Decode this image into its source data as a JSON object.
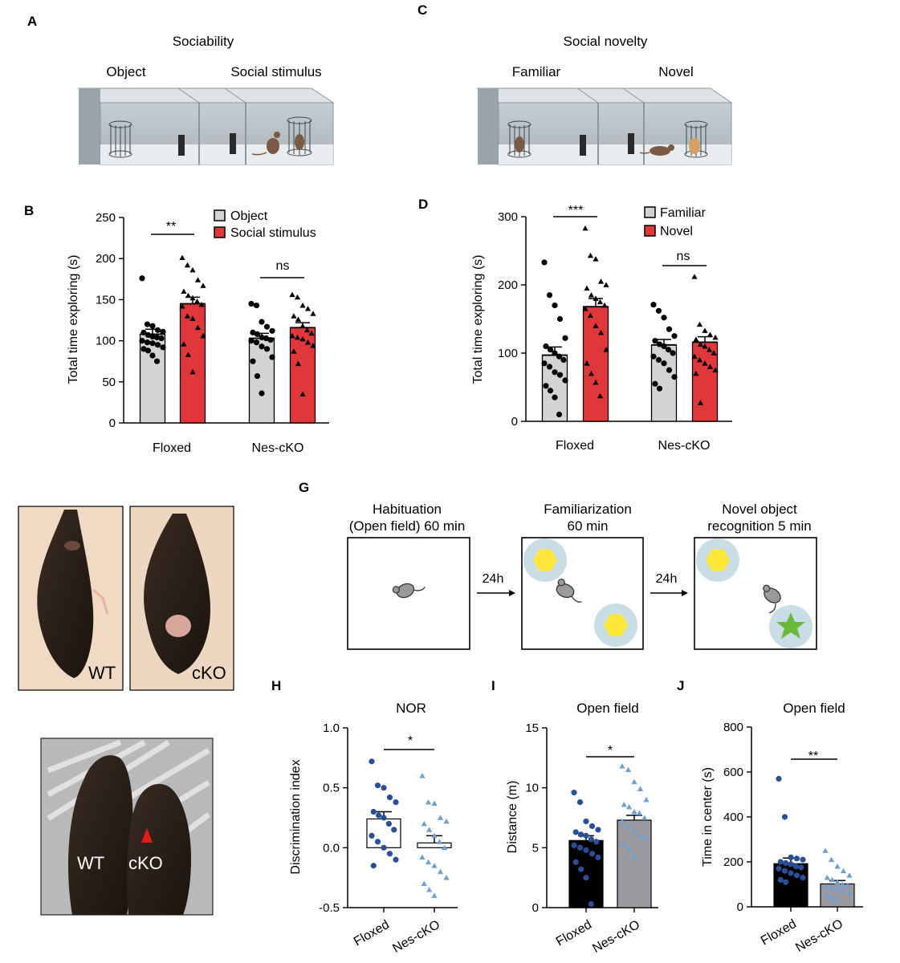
{
  "panels": {
    "A": {
      "letter": "A",
      "title": "Sociability",
      "left_label": "Object",
      "right_label": "Social stimulus"
    },
    "C": {
      "letter": "C",
      "title": "Social novelty",
      "left_label": "Familiar",
      "right_label": "Novel"
    },
    "G": {
      "letter": "G",
      "steps": [
        {
          "title_line1": "Habituation",
          "title_line2": "(Open field) 60 min"
        },
        {
          "title_line1": "Familiarization",
          "title_line2": "60 min"
        },
        {
          "title_line1": "Novel object",
          "title_line2": "recognition 5 min"
        }
      ],
      "arrow_labels": [
        "24h",
        "24h"
      ]
    },
    "photos": {
      "top_left_label": "WT",
      "top_right_label": "cKO",
      "bottom_label_wt": "WT",
      "bottom_label_cko": "cKO"
    }
  },
  "colors": {
    "gray_bar": "#d3d3d3",
    "red_bar": "#e0383a",
    "black_bar": "#000000",
    "nor_gray_bar": "#9a9aa0",
    "dark_blue_dots": "#2b4f95",
    "light_blue_dots": "#6e9fd1",
    "hexagon_yellow": "#ffe83b",
    "star_green": "#6bb83a",
    "halo_blue": "#c9dde6",
    "arrow_red": "#e41d1d"
  },
  "chart_data": [
    {
      "id": "B",
      "letter": "B",
      "type": "bar",
      "categories": [
        "Floxed",
        "Nes-cKO"
      ],
      "series": [
        {
          "name": "Object",
          "values": [
            108,
            103
          ],
          "sem": [
            6,
            6
          ],
          "points": [
            [
              176,
              120,
              118,
              113,
              111,
              110,
              107,
              105,
              104,
              103,
              100,
              98,
              97,
              95,
              92,
              90,
              88,
              82,
              75
            ],
            [
              145,
              143,
              123,
              117,
              112,
              110,
              108,
              104,
              103,
              101,
              100,
              98,
              93,
              90,
              80,
              75,
              57,
              36
            ]
          ]
        },
        {
          "name": "Social stimulus",
          "values": [
            145,
            116
          ],
          "sem": [
            8,
            6
          ],
          "points": [
            [
              201,
              192,
              186,
              174,
              167,
              160,
              155,
              152,
              148,
              144,
              142,
              130,
              127,
              116,
              106,
              96,
              83,
              62
            ],
            [
              156,
              153,
              143,
              139,
              133,
              130,
              126,
              118,
              113,
              109,
              106,
              104,
              102,
              98,
              94,
              87,
              72,
              35
            ]
          ]
        }
      ],
      "ylabel": "Total time exploring (s)",
      "ylim": [
        0,
        250
      ],
      "yticks": [
        0,
        50,
        100,
        150,
        200,
        250
      ],
      "significance": [
        "**",
        "ns"
      ],
      "legend": "top-right",
      "grid": false
    },
    {
      "id": "D",
      "letter": "D",
      "type": "bar",
      "categories": [
        "Floxed",
        "Nes-cKO"
      ],
      "series": [
        {
          "name": "Familiar",
          "values": [
            97,
            112
          ],
          "sem": [
            12,
            8
          ],
          "points": [
            [
              233,
              185,
              170,
              150,
              122,
              110,
              105,
              100,
              95,
              90,
              85,
              80,
              72,
              68,
              60,
              52,
              45,
              35,
              10
            ],
            [
              171,
              162,
              152,
              135,
              125,
              118,
              113,
              110,
              105,
              100,
              95,
              90,
              85,
              75,
              65,
              55,
              48
            ]
          ]
        },
        {
          "name": "Novel",
          "values": [
            168,
            116
          ],
          "sem": [
            12,
            8
          ],
          "points": [
            [
              283,
              243,
              238,
              205,
              200,
              195,
              185,
              180,
              175,
              170,
              165,
              155,
              140,
              130,
              105,
              85,
              70,
              57,
              37
            ],
            [
              212,
              142,
              133,
              127,
              123,
              120,
              113,
              110,
              105,
              100,
              95,
              90,
              85,
              80,
              75,
              70,
              27
            ]
          ]
        }
      ],
      "ylabel": "Total time exploring (s)",
      "ylim": [
        0,
        300
      ],
      "yticks": [
        0,
        100,
        200,
        300
      ],
      "significance": [
        "***",
        "ns"
      ],
      "legend": "top-right",
      "grid": false
    },
    {
      "id": "H",
      "letter": "H",
      "type": "bar",
      "title": "NOR",
      "categories": [
        "Floxed",
        "Nes-cKO"
      ],
      "values": [
        0.24,
        0.04
      ],
      "sem": [
        0.06,
        0.06
      ],
      "points": [
        [
          0.72,
          0.52,
          0.5,
          0.42,
          0.38,
          0.3,
          0.27,
          0.25,
          0.2,
          0.15,
          0.1,
          0.05,
          0.0,
          -0.05,
          -0.1,
          -0.15
        ],
        [
          0.6,
          0.38,
          0.37,
          0.25,
          0.22,
          0.2,
          0.15,
          0.1,
          0.05,
          0.0,
          -0.08,
          -0.12,
          -0.15,
          -0.2,
          -0.25,
          -0.3,
          -0.35,
          -0.4
        ]
      ],
      "ylabel": "Discrimination index",
      "ylim": [
        -0.5,
        1.0
      ],
      "ytick_labels": [
        "-0.5",
        "0.0",
        "0.5",
        "1.0"
      ],
      "yticks": [
        -0.5,
        0.0,
        0.5,
        1.0
      ],
      "significance": "*",
      "grid": false
    },
    {
      "id": "I",
      "letter": "I",
      "type": "bar",
      "title": "Open field",
      "categories": [
        "Floxed",
        "Nes-cKO"
      ],
      "values": [
        5.6,
        7.3
      ],
      "sem": [
        0.4,
        0.4
      ],
      "points": [
        [
          9.6,
          8.8,
          7.2,
          6.8,
          6.5,
          6.3,
          6.1,
          6.0,
          5.7,
          5.5,
          5.2,
          5.0,
          4.8,
          4.5,
          4.2,
          3.8,
          3.2,
          2.5,
          0.3
        ],
        [
          11.8,
          11.5,
          10.5,
          9.9,
          9.0,
          8.6,
          8.4,
          8.0,
          7.9,
          7.5,
          7.2,
          6.8,
          6.4,
          6.0,
          5.8,
          5.2,
          4.8,
          4.2
        ]
      ],
      "ylabel": "Distance (m)",
      "ylim": [
        0,
        15
      ],
      "yticks": [
        0,
        5,
        10,
        15
      ],
      "significance": "*",
      "grid": false
    },
    {
      "id": "J",
      "letter": "J",
      "type": "bar",
      "title": "Open field",
      "categories": [
        "Floxed",
        "Nes-cKO"
      ],
      "values": [
        192,
        102
      ],
      "sem": [
        25,
        15
      ],
      "points": [
        [
          570,
          400,
          220,
          215,
          210,
          200,
          195,
          190,
          180,
          175,
          170,
          160,
          150,
          140,
          130,
          120,
          110
        ],
        [
          250,
          210,
          180,
          160,
          140,
          130,
          120,
          110,
          100,
          95,
          90,
          85,
          80,
          70,
          60,
          50,
          40,
          30
        ]
      ],
      "ylabel": "Time in center (s)",
      "ylim": [
        0,
        800
      ],
      "yticks": [
        0,
        200,
        400,
        600,
        800
      ],
      "significance": "**",
      "grid": false
    }
  ]
}
